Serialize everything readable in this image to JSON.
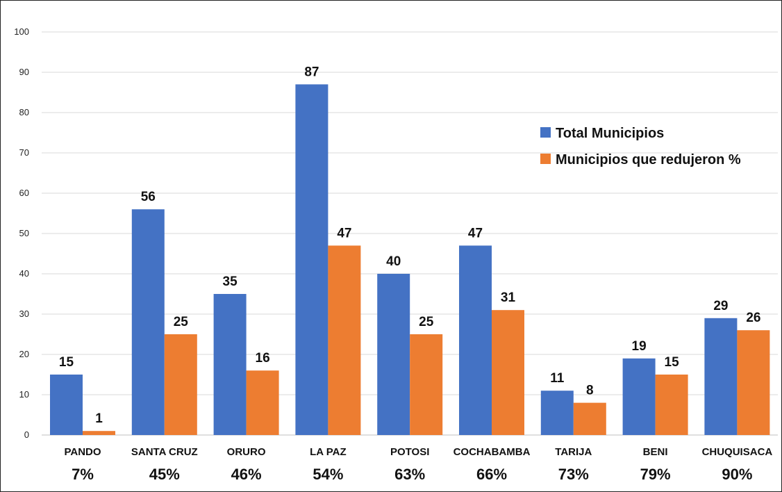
{
  "chart_data": {
    "type": "bar",
    "categories": [
      "PANDO",
      "SANTA CRUZ",
      "ORURO",
      "LA PAZ",
      "POTOSI",
      "COCHABAMBA",
      "TARIJA",
      "BENI",
      "CHUQUISACA"
    ],
    "percentages": [
      "7%",
      "45%",
      "46%",
      "54%",
      "63%",
      "66%",
      "73%",
      "79%",
      "90%"
    ],
    "series": [
      {
        "name": "Total Municipios",
        "color": "#4472C4",
        "values": [
          15,
          56,
          35,
          87,
          40,
          47,
          11,
          19,
          29
        ]
      },
      {
        "name": "Municipios que redujeron %",
        "color": "#ED7D31",
        "values": [
          1,
          25,
          16,
          47,
          25,
          31,
          8,
          15,
          26
        ]
      }
    ],
    "ylim": [
      0,
      100
    ],
    "yticks": [
      0,
      10,
      20,
      30,
      40,
      50,
      60,
      70,
      80,
      90,
      100
    ],
    "grid": true,
    "legend_position": "top-right",
    "title": "",
    "xlabel": "",
    "ylabel": ""
  }
}
